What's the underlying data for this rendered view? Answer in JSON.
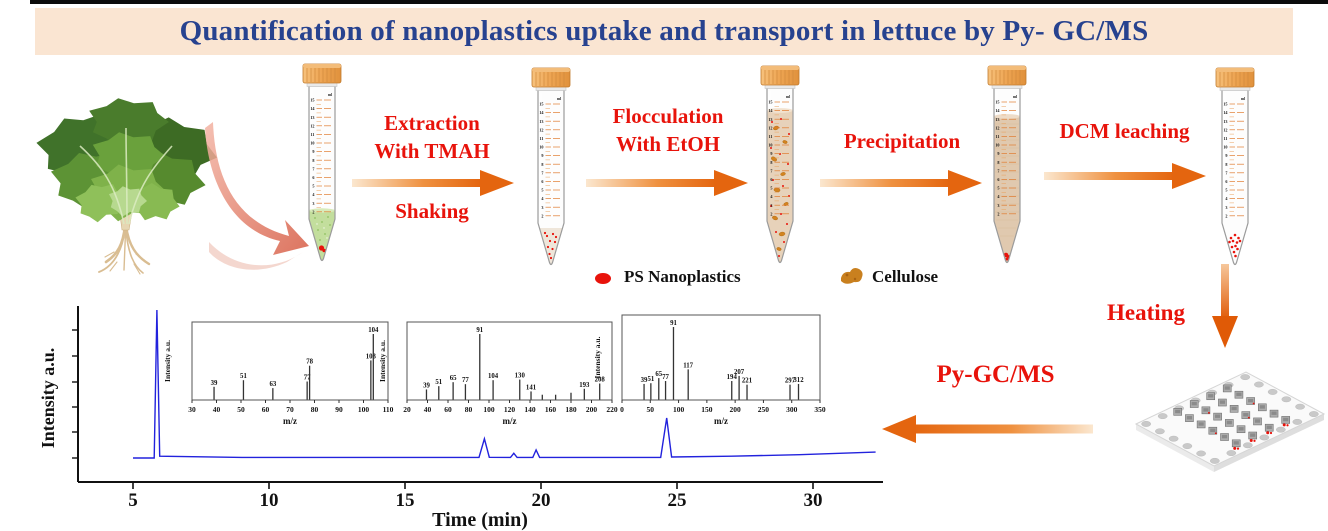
{
  "banner": {
    "title": "Quantification of nanoplastics uptake and transport in lettuce by Py- GC/MS",
    "bg_color": "#fae5d2",
    "text_color": "#27428f"
  },
  "colors": {
    "step_label_red": "#e8130b",
    "arrow_orange": "#e4650f",
    "tube_cap_orange": "#eda452",
    "pyrogram_line_blue": "#2222dd",
    "cellulose_brown": "#c9801f"
  },
  "workflow": {
    "step1": {
      "line1": "Extraction",
      "line2": "With TMAH",
      "sub": "Shaking"
    },
    "step2": {
      "line1": "Flocculation",
      "line2": "With EtOH"
    },
    "step3": {
      "label": "Precipitation"
    },
    "step4": {
      "label": "DCM leaching"
    },
    "step5": {
      "label": "Heating"
    },
    "step6": {
      "label": "Py-GC/MS"
    },
    "tube_unit": "ml",
    "tube_scale_labels": [
      "15",
      "14",
      "13",
      "12",
      "11",
      "10",
      "9",
      "8",
      "7",
      "6",
      "5",
      "4",
      "3",
      "2"
    ]
  },
  "legend": {
    "nanoplastics": {
      "label": "PS Nanoplastics",
      "icon": "red-dot-icon",
      "color": "#e8130b"
    },
    "cellulose": {
      "label": "Cellulose",
      "icon": "cellulose-blob-icon",
      "color": "#c9801f"
    }
  },
  "chart_data": [
    {
      "type": "line",
      "name": "py-gc-ms-pyrogram",
      "xlabel": "Time (min)",
      "ylabel": "Intensity a.u.",
      "xlim": [
        3.2,
        32.5
      ],
      "xticks": [
        5,
        10,
        15,
        20,
        25,
        30
      ],
      "grid": false,
      "line_color": "#2222dd",
      "points": [
        [
          5,
          0
        ],
        [
          5.78,
          0
        ],
        [
          5.88,
          1.0
        ],
        [
          5.98,
          0.012
        ],
        [
          9,
          0.004
        ],
        [
          14,
          0.004
        ],
        [
          17.72,
          0.004
        ],
        [
          17.92,
          0.13
        ],
        [
          18.1,
          0.005
        ],
        [
          18.88,
          0.004
        ],
        [
          19.0,
          0.032
        ],
        [
          19.12,
          0.004
        ],
        [
          19.7,
          0.004
        ],
        [
          19.82,
          0.055
        ],
        [
          19.95,
          0.004
        ],
        [
          24.4,
          0.004
        ],
        [
          24.62,
          0.27
        ],
        [
          24.8,
          0.007
        ],
        [
          27,
          0.012
        ],
        [
          29.5,
          0.022
        ],
        [
          32.3,
          0.04
        ]
      ]
    },
    {
      "type": "bar",
      "name": "mass-spectrum-inset-1",
      "xlabel": "m/z",
      "ylabel": "Intensity a.u.",
      "xlim": [
        30,
        110
      ],
      "xtick_step": 10,
      "peaks": [
        {
          "mz": 39,
          "h": 0.2,
          "label": "39"
        },
        {
          "mz": 51,
          "h": 0.3,
          "label": "51"
        },
        {
          "mz": 63,
          "h": 0.18,
          "label": "63"
        },
        {
          "mz": 77,
          "h": 0.28,
          "label": "77"
        },
        {
          "mz": 78,
          "h": 0.52,
          "label": "78"
        },
        {
          "mz": 103,
          "h": 0.6,
          "label": "103"
        },
        {
          "mz": 104,
          "h": 1.0,
          "label": "104"
        }
      ]
    },
    {
      "type": "bar",
      "name": "mass-spectrum-inset-2",
      "xlabel": "m/z",
      "ylabel": "Intensity a.u.",
      "xlim": [
        20,
        220
      ],
      "xtick_step": 20,
      "peaks": [
        {
          "mz": 39,
          "h": 0.16,
          "label": "39"
        },
        {
          "mz": 51,
          "h": 0.21,
          "label": "51"
        },
        {
          "mz": 65,
          "h": 0.27,
          "label": "65"
        },
        {
          "mz": 77,
          "h": 0.24,
          "label": "77"
        },
        {
          "mz": 91,
          "h": 1.0,
          "label": "91"
        },
        {
          "mz": 104,
          "h": 0.3,
          "label": "104"
        },
        {
          "mz": 130,
          "h": 0.31,
          "label": "130"
        },
        {
          "mz": 141,
          "h": 0.13,
          "label": "141"
        },
        {
          "mz": 152,
          "h": 0.08
        },
        {
          "mz": 165,
          "h": 0.08
        },
        {
          "mz": 180,
          "h": 0.11
        },
        {
          "mz": 193,
          "h": 0.17,
          "label": "193"
        },
        {
          "mz": 208,
          "h": 0.25,
          "label": "208"
        }
      ]
    },
    {
      "type": "bar",
      "name": "mass-spectrum-inset-3",
      "xlabel": "m/z",
      "ylabel": "Intensity a.u.",
      "xlim": [
        0,
        350
      ],
      "xtick_step": 50,
      "peaks": [
        {
          "mz": 39,
          "h": 0.22,
          "label": "39"
        },
        {
          "mz": 51,
          "h": 0.23,
          "label": "51"
        },
        {
          "mz": 65,
          "h": 0.3,
          "label": "65"
        },
        {
          "mz": 77,
          "h": 0.26,
          "label": "77"
        },
        {
          "mz": 91,
          "h": 1.0,
          "label": "91"
        },
        {
          "mz": 117,
          "h": 0.42,
          "label": "117"
        },
        {
          "mz": 194,
          "h": 0.26,
          "label": "194"
        },
        {
          "mz": 207,
          "h": 0.33,
          "label": "207"
        },
        {
          "mz": 221,
          "h": 0.21,
          "label": "221"
        },
        {
          "mz": 297,
          "h": 0.21,
          "label": "297"
        },
        {
          "mz": 312,
          "h": 0.22,
          "label": "312"
        }
      ]
    }
  ]
}
